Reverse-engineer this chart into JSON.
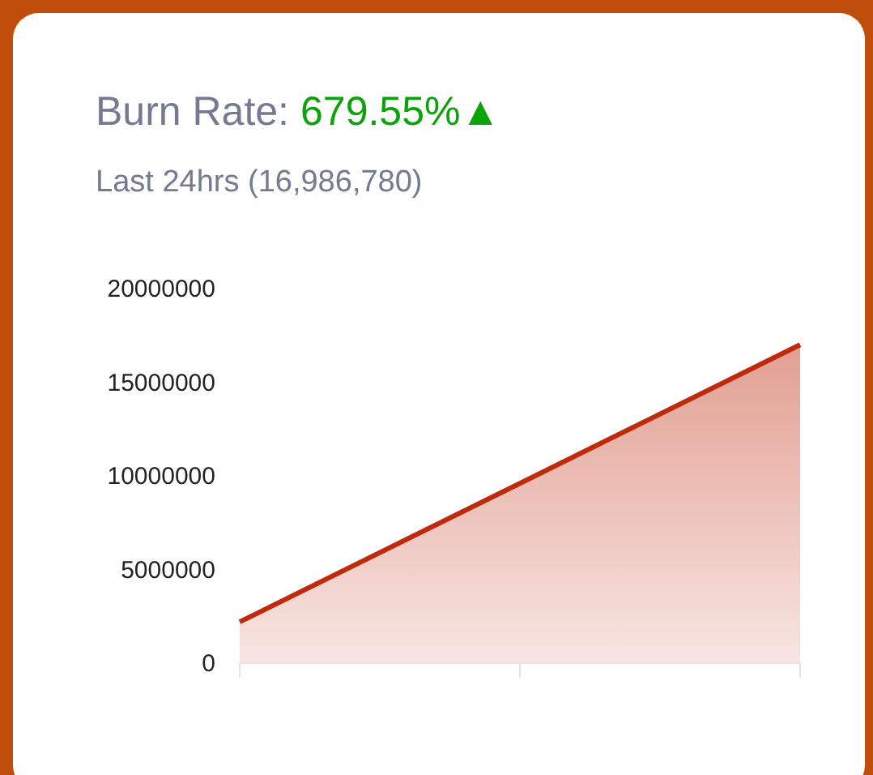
{
  "chart_data": {
    "type": "area",
    "title": "Burn Rate:",
    "annotations": [
      "679.55%▲"
    ],
    "subtitle": "Last 24hrs (16,986,780)",
    "categories": [
      null,
      null,
      null
    ],
    "series": [
      {
        "color": "#bf2a0c",
        "values": [
          2200000,
          9600000,
          17000000
        ]
      }
    ],
    "ylim": [
      0,
      20000000
    ],
    "yticks": [
      0,
      5000000,
      10000000,
      15000000,
      20000000
    ]
  }
}
